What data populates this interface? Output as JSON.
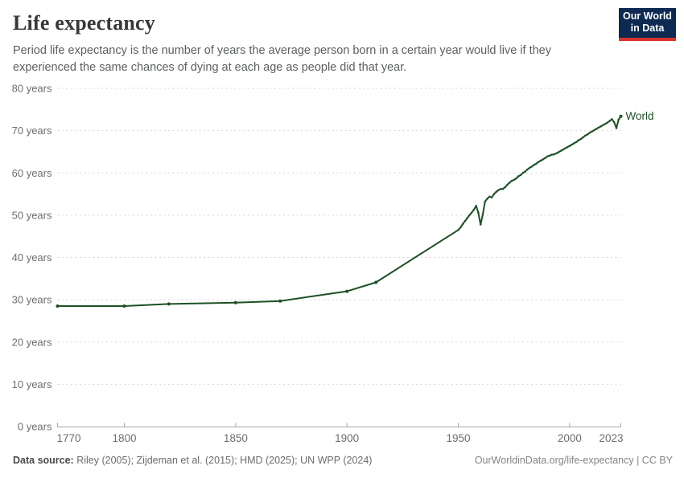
{
  "header": {
    "title": "Life expectancy",
    "subtitle": "Period life expectancy is the number of years the average person born in a certain year would live if they experienced the same chances of dying at each age as people did that year."
  },
  "logo": {
    "line1": "Our World",
    "line2": "in Data",
    "bg_color": "#0d2a52",
    "accent_color": "#d7352c"
  },
  "chart_data": {
    "type": "line",
    "title": "Life expectancy",
    "xlabel": "",
    "ylabel": "",
    "xlim": [
      1770,
      2023
    ],
    "ylim": [
      0,
      80
    ],
    "x_ticks": [
      1770,
      1800,
      1850,
      1900,
      1950,
      2000,
      2023
    ],
    "y_ticks": [
      0,
      10,
      20,
      30,
      40,
      50,
      60,
      70,
      80
    ],
    "y_tick_suffix": " years",
    "grid": "horizontal-dashed",
    "legend_position": "end-of-line",
    "colors": {
      "line": "#1e5026",
      "grid": "#d6d6d6",
      "axis": "#a5a5a5",
      "tick_label": "#6e6e6e"
    },
    "series": [
      {
        "name": "World",
        "points": [
          [
            1770,
            28.5
          ],
          [
            1800,
            28.5
          ],
          [
            1820,
            29.0
          ],
          [
            1850,
            29.3
          ],
          [
            1870,
            29.7
          ],
          [
            1900,
            32.0
          ],
          [
            1913,
            34.1
          ],
          [
            1950,
            46.5
          ],
          [
            1951,
            47.1
          ],
          [
            1952,
            47.9
          ],
          [
            1953,
            48.6
          ],
          [
            1954,
            49.3
          ],
          [
            1955,
            50.0
          ],
          [
            1956,
            50.6
          ],
          [
            1957,
            51.3
          ],
          [
            1958,
            52.2
          ],
          [
            1959,
            50.6
          ],
          [
            1960,
            47.8
          ],
          [
            1961,
            50.2
          ],
          [
            1962,
            53.2
          ],
          [
            1963,
            53.9
          ],
          [
            1964,
            54.4
          ],
          [
            1965,
            54.2
          ],
          [
            1966,
            55.0
          ],
          [
            1967,
            55.5
          ],
          [
            1968,
            55.9
          ],
          [
            1969,
            56.2
          ],
          [
            1970,
            56.2
          ],
          [
            1971,
            56.6
          ],
          [
            1972,
            57.2
          ],
          [
            1973,
            57.7
          ],
          [
            1974,
            58.1
          ],
          [
            1975,
            58.4
          ],
          [
            1976,
            58.7
          ],
          [
            1977,
            59.2
          ],
          [
            1978,
            59.5
          ],
          [
            1979,
            60.0
          ],
          [
            1980,
            60.3
          ],
          [
            1981,
            60.8
          ],
          [
            1982,
            61.2
          ],
          [
            1983,
            61.5
          ],
          [
            1984,
            61.9
          ],
          [
            1985,
            62.2
          ],
          [
            1986,
            62.6
          ],
          [
            1987,
            62.9
          ],
          [
            1988,
            63.2
          ],
          [
            1989,
            63.5
          ],
          [
            1990,
            63.9
          ],
          [
            1991,
            64.1
          ],
          [
            1992,
            64.3
          ],
          [
            1993,
            64.4
          ],
          [
            1994,
            64.6
          ],
          [
            1995,
            64.9
          ],
          [
            1996,
            65.2
          ],
          [
            1997,
            65.5
          ],
          [
            1998,
            65.8
          ],
          [
            1999,
            66.1
          ],
          [
            2000,
            66.4
          ],
          [
            2001,
            66.7
          ],
          [
            2002,
            67.0
          ],
          [
            2003,
            67.3
          ],
          [
            2004,
            67.7
          ],
          [
            2005,
            68.0
          ],
          [
            2006,
            68.4
          ],
          [
            2007,
            68.8
          ],
          [
            2008,
            69.1
          ],
          [
            2009,
            69.5
          ],
          [
            2010,
            69.8
          ],
          [
            2011,
            70.1
          ],
          [
            2012,
            70.4
          ],
          [
            2013,
            70.7
          ],
          [
            2014,
            71.0
          ],
          [
            2015,
            71.3
          ],
          [
            2016,
            71.6
          ],
          [
            2017,
            71.9
          ],
          [
            2018,
            72.3
          ],
          [
            2019,
            72.7
          ],
          [
            2020,
            72.0
          ],
          [
            2021,
            70.6
          ],
          [
            2022,
            72.6
          ],
          [
            2023,
            73.4
          ]
        ]
      }
    ]
  },
  "footer": {
    "datasource_label": "Data source:",
    "datasource_text": " Riley (2005); Zijdeman et al. (2015); HMD (2025); UN WPP (2024)",
    "attribution": "OurWorldinData.org/life-expectancy | CC BY"
  }
}
